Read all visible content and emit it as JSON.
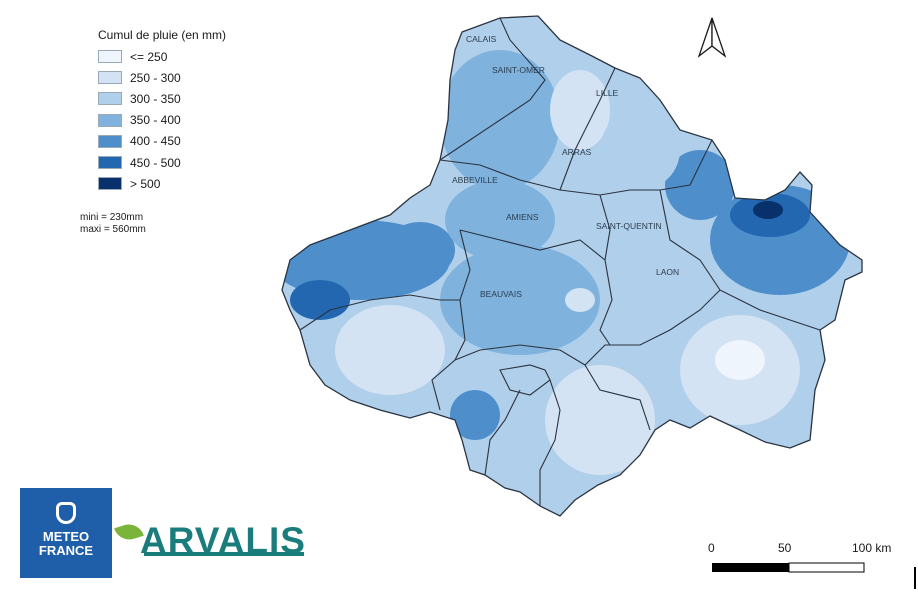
{
  "legend": {
    "title": "Cumul de pluie (en mm)",
    "classes": [
      {
        "label": "<= 250",
        "color": "#eef5fc"
      },
      {
        "label": "250 - 300",
        "color": "#d3e3f3"
      },
      {
        "label": "300 - 350",
        "color": "#b0cfea"
      },
      {
        "label": "350 - 400",
        "color": "#7fb2dd"
      },
      {
        "label": "400 - 450",
        "color": "#4e8fcb"
      },
      {
        "label": "450 - 500",
        "color": "#2367b1"
      },
      {
        "label": "> 500",
        "color": "#08306b"
      }
    ]
  },
  "stats": {
    "mini": "mini = 230mm",
    "maxi": "maxi = 560mm"
  },
  "cities": {
    "calais": "CALAIS",
    "saint_omer": "SAINT-OMER",
    "lille": "LILLE",
    "arras": "ARRAS",
    "abbeville": "ABBEVILLE",
    "amiens": "AMIENS",
    "saint_quentin": "SAINT-QUENTIN",
    "laon": "LAON",
    "beauvais": "BEAUVAIS"
  },
  "scale": {
    "tick_0": "0",
    "tick_50": "50",
    "tick_100": "100 km"
  },
  "logos": {
    "meteo_line1": "METEO",
    "meteo_line2": "FRANCE",
    "arvalis": "ARVALIS"
  },
  "north_arrow_icon": "north-arrow-icon"
}
